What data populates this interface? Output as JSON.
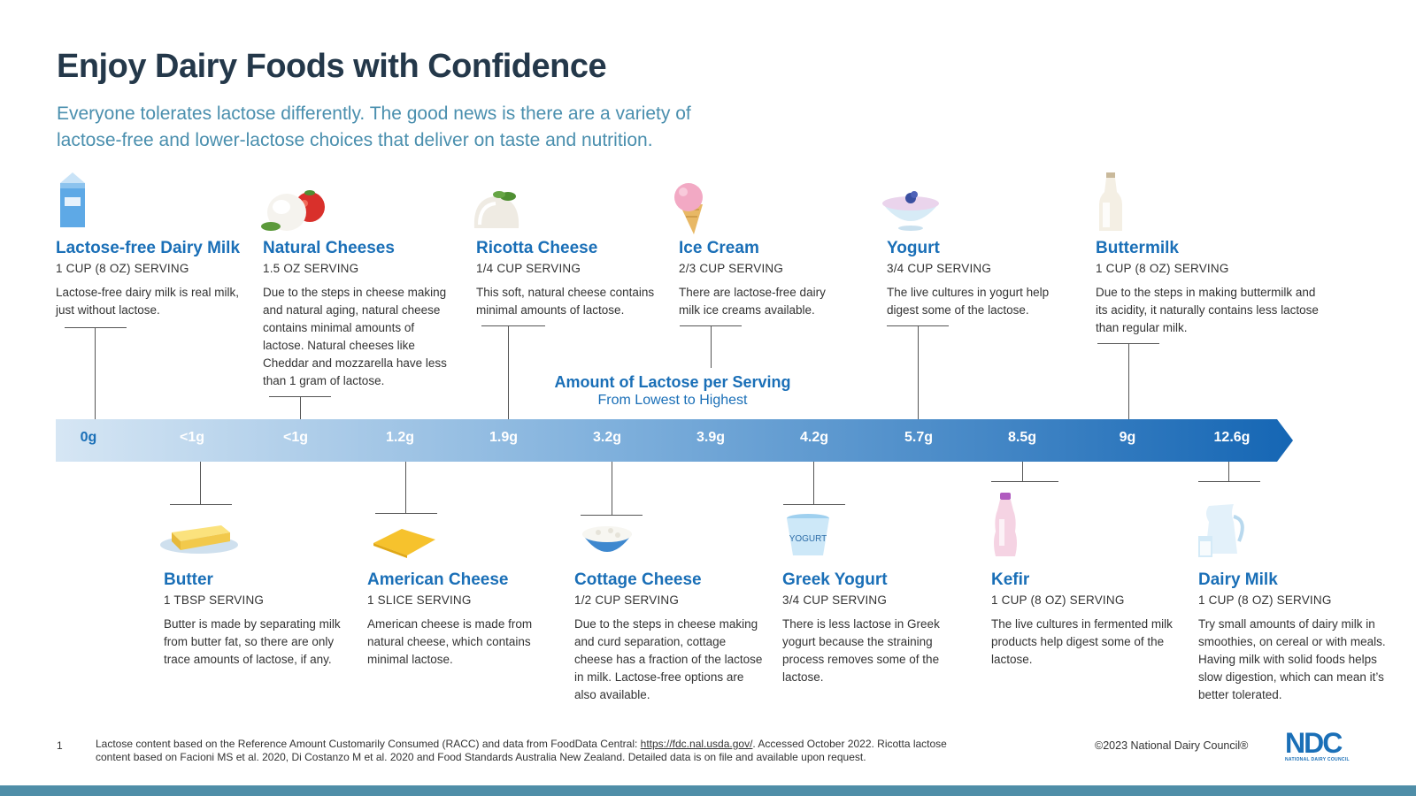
{
  "header": {
    "title": "Enjoy Dairy Foods with Confidence",
    "subtitle": "Everyone tolerates lactose differently. The good news is there are a variety of lactose-free and lower-lactose choices that deliver on taste and nutrition."
  },
  "scale": {
    "title": "Amount of Lactose per Serving",
    "subtitle": "From Lowest to Highest",
    "values": [
      "0g",
      "<1g",
      "<1g",
      "1.2g",
      "1.9g",
      "3.2g",
      "3.9g",
      "4.2g",
      "5.7g",
      "8.5g",
      "9g",
      "12.6g"
    ]
  },
  "top_items": [
    {
      "name": "Lactose-free Dairy Milk",
      "serving": "1 CUP (8 OZ) SERVING",
      "desc": "Lactose-free dairy milk is real milk, just without lactose.",
      "icon": "milk-carton-icon"
    },
    {
      "name": "Natural Cheeses",
      "serving": "1.5 OZ SERVING",
      "desc": "Due to the steps in cheese making and natural aging, natural cheese contains minimal amounts of lactose. Natural cheeses like Cheddar and mozzarella have less than 1 gram of lactose.",
      "icon": "mozzarella-icon"
    },
    {
      "name": "Ricotta Cheese",
      "serving": "1/4 CUP SERVING",
      "desc": "This soft, natural cheese contains minimal amounts of lactose.",
      "icon": "ricotta-icon"
    },
    {
      "name": "Ice Cream",
      "serving": "2/3 CUP SERVING",
      "desc": "There are lactose-free dairy milk ice creams available.",
      "icon": "ice-cream-cone-icon"
    },
    {
      "name": "Yogurt",
      "serving": "3/4 CUP SERVING",
      "desc": "The live cultures in yogurt help digest some of the lactose.",
      "icon": "yogurt-bowl-icon"
    },
    {
      "name": "Buttermilk",
      "serving": "1 CUP (8 OZ) SERVING",
      "desc": "Due to the steps in making buttermilk and its acidity, it naturally contains less lactose than regular milk.",
      "icon": "buttermilk-bottle-icon"
    }
  ],
  "bottom_items": [
    {
      "name": "Butter",
      "serving": "1 TBSP SERVING",
      "desc": "Butter is made by separating milk from butter fat, so there are only trace amounts of lactose, if any.",
      "icon": "butter-icon"
    },
    {
      "name": "American Cheese",
      "serving": "1 SLICE SERVING",
      "desc": "American cheese is made from natural cheese, which contains minimal lactose.",
      "icon": "cheese-slice-icon"
    },
    {
      "name": "Cottage Cheese",
      "serving": "1/2 CUP SERVING",
      "desc": "Due to the steps in cheese making and curd separation, cottage cheese has a fraction of the lactose in milk. Lactose-free options are also available.",
      "icon": "cottage-cheese-bowl-icon"
    },
    {
      "name": "Greek Yogurt",
      "serving": "3/4 CUP SERVING",
      "desc": "There is less lactose in Greek yogurt because the straining process removes some of the lactose.",
      "icon": "yogurt-cup-icon"
    },
    {
      "name": "Kefir",
      "serving": "1  CUP (8 OZ) SERVING",
      "desc": "The live cultures in fermented milk products help digest some of the lactose.",
      "icon": "kefir-bottle-icon"
    },
    {
      "name": "Dairy Milk",
      "serving": "1 CUP (8 OZ) SERVING",
      "desc": "Try small amounts of dairy milk in smoothies, on cereal or with meals. Having milk with solid foods helps slow digestion, which can mean it’s better tolerated.",
      "icon": "milk-pitcher-icon"
    }
  ],
  "footer": {
    "note_number": "1",
    "note_prefix": "Lactose content based on the Reference Amount Customarily Consumed (RACC) and data from FoodData Central: ",
    "note_link": "https://fdc.nal.usda.gov/",
    "note_suffix": ". Accessed October 2022. Ricotta lactose content based on Facioni MS et al. 2020, Di Costanzo M et al. 2020 and Food Standards Australia New Zealand.  Detailed data is on file and available upon request.",
    "copyright": "©2023 National Dairy Council®",
    "logo_text": "NDC",
    "logo_subtext": "NATIONAL DAIRY COUNCIL"
  },
  "colors": {
    "title": "#24384a",
    "subtitle": "#4a8fae",
    "accent": "#1a6fb7",
    "bar_start": "#d6e6f4",
    "bar_end": "#1566b4",
    "bottom_stripe": "#4f8ea8"
  }
}
